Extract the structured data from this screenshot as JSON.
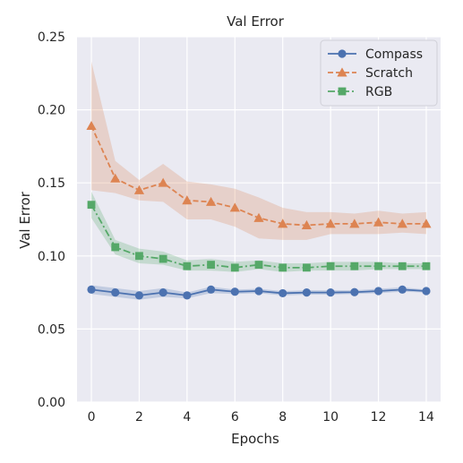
{
  "chart_data": {
    "type": "line",
    "title": "Val Error",
    "xlabel": "Epochs",
    "ylabel": "Val Error",
    "xlim": [
      -0.6,
      14.6
    ],
    "ylim": [
      0,
      0.25
    ],
    "xticks": [
      0,
      2,
      4,
      6,
      8,
      10,
      12,
      14
    ],
    "yticks": [
      "0.00",
      "0.05",
      "0.10",
      "0.15",
      "0.20",
      "0.25"
    ],
    "grid": true,
    "legend_position": "top-right",
    "x": [
      0,
      1,
      2,
      3,
      4,
      5,
      6,
      7,
      8,
      9,
      10,
      11,
      12,
      13,
      14
    ],
    "series": [
      {
        "name": "Compass",
        "color": "#4c72b0",
        "marker": "circle",
        "linestyle": "solid",
        "values": [
          0.077,
          0.075,
          0.073,
          0.075,
          0.073,
          0.077,
          0.0755,
          0.076,
          0.0745,
          0.075,
          0.075,
          0.0752,
          0.076,
          0.077,
          0.076
        ],
        "lower": [
          0.074,
          0.072,
          0.07,
          0.072,
          0.071,
          0.0745,
          0.074,
          0.0745,
          0.073,
          0.0735,
          0.0735,
          0.074,
          0.0745,
          0.0755,
          0.075
        ],
        "upper": [
          0.08,
          0.078,
          0.076,
          0.078,
          0.075,
          0.079,
          0.077,
          0.0775,
          0.076,
          0.0765,
          0.0765,
          0.0765,
          0.0775,
          0.0785,
          0.077
        ]
      },
      {
        "name": "Scratch",
        "color": "#dd8452",
        "marker": "triangle",
        "linestyle": "dashed",
        "values": [
          0.189,
          0.153,
          0.145,
          0.15,
          0.138,
          0.137,
          0.133,
          0.126,
          0.122,
          0.121,
          0.122,
          0.122,
          0.123,
          0.122,
          0.122
        ],
        "lower": [
          0.145,
          0.143,
          0.138,
          0.137,
          0.125,
          0.125,
          0.12,
          0.112,
          0.111,
          0.111,
          0.115,
          0.115,
          0.115,
          0.116,
          0.115
        ],
        "upper": [
          0.233,
          0.165,
          0.152,
          0.163,
          0.151,
          0.149,
          0.146,
          0.14,
          0.133,
          0.13,
          0.13,
          0.129,
          0.131,
          0.129,
          0.13
        ]
      },
      {
        "name": "RGB",
        "color": "#55a868",
        "marker": "square",
        "linestyle": "dashdot",
        "values": [
          0.135,
          0.106,
          0.1,
          0.098,
          0.093,
          0.094,
          0.092,
          0.094,
          0.092,
          0.092,
          0.093,
          0.093,
          0.093,
          0.093,
          0.093
        ],
        "lower": [
          0.126,
          0.101,
          0.095,
          0.094,
          0.09,
          0.09,
          0.089,
          0.091,
          0.089,
          0.09,
          0.09,
          0.09,
          0.091,
          0.091,
          0.091
        ],
        "upper": [
          0.144,
          0.111,
          0.105,
          0.103,
          0.097,
          0.098,
          0.096,
          0.097,
          0.095,
          0.095,
          0.096,
          0.096,
          0.096,
          0.095,
          0.095
        ]
      }
    ]
  },
  "colors": {
    "plot_background": "#eaeaf2",
    "grid": "#ffffff"
  }
}
